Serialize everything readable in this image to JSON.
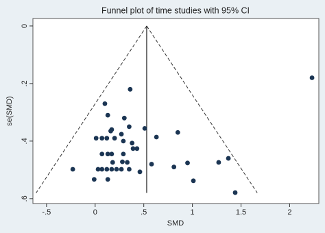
{
  "chart_data": {
    "type": "scatter",
    "title": "Funnel plot of time studies with 95% CI",
    "x_label": "SMD",
    "y_label": "se(SMD)",
    "y_reversed": true,
    "color": "#1b3553",
    "xlim": [
      -0.64,
      2.3
    ],
    "ylim": [
      -0.026,
      0.617
    ],
    "xticks": [
      {
        "value": -0.5,
        "label": "-.5"
      },
      0,
      {
        "value": 0.5,
        "label": ".5"
      },
      1,
      1.5,
      2
    ],
    "yticks": [
      0,
      {
        "value": 0.2,
        "label": ".2"
      },
      {
        "value": 0.4,
        "label": ".4"
      },
      {
        "value": 0.6,
        "label": ".6"
      }
    ],
    "reference_line": {
      "x": 0.53,
      "se_max": 0.58
    },
    "x": [
      2.23,
      0.36,
      0.1,
      0.3,
      0.13,
      0.17,
      0.16,
      0.35,
      0.51,
      0.85,
      0.63,
      0.01,
      0.07,
      0.12,
      0.27,
      0.2,
      0.38,
      0.29,
      0.43,
      0.39,
      0.07,
      0.13,
      0.17,
      0.29,
      1.37,
      1.27,
      0.18,
      0.28,
      0.33,
      0.95,
      0.58,
      0.03,
      0.07,
      0.12,
      0.17,
      0.22,
      0.27,
      0.35,
      0.46,
      0.81,
      -0.23,
      -0.01,
      0.13,
      1.01,
      1.44
    ],
    "y": [
      0.18,
      0.22,
      0.27,
      0.32,
      0.31,
      0.36,
      0.365,
      0.35,
      0.356,
      0.37,
      0.386,
      0.39,
      0.39,
      0.39,
      0.376,
      0.39,
      0.407,
      0.4,
      0.426,
      0.426,
      0.445,
      0.445,
      0.445,
      0.445,
      0.46,
      0.474,
      0.474,
      0.472,
      0.474,
      0.476,
      0.48,
      0.498,
      0.498,
      0.498,
      0.498,
      0.498,
      0.498,
      0.498,
      0.507,
      0.49,
      0.498,
      0.533,
      0.533,
      0.538,
      0.579
    ]
  }
}
